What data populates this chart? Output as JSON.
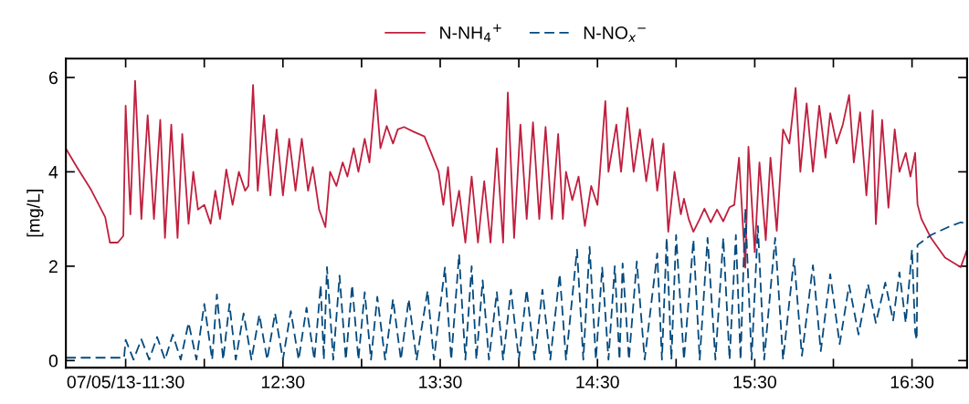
{
  "chart_data": {
    "type": "line",
    "ylabel": "[mg/L]",
    "legend": "top",
    "grid": false,
    "marker": "none",
    "xlim": [
      11.12,
      16.85
    ],
    "ylim": [
      -0.15,
      6.4
    ],
    "yticks": [
      0,
      2,
      4,
      6
    ],
    "xticks": [
      {
        "value": 11.5,
        "label": "07/05/13-11:30"
      },
      {
        "value": 12,
        "label": null
      },
      {
        "value": 12.5,
        "label": "12:30"
      },
      {
        "value": 13,
        "label": null
      },
      {
        "value": 13.5,
        "label": "13:30"
      },
      {
        "value": 14,
        "label": null
      },
      {
        "value": 14.5,
        "label": "14:30"
      },
      {
        "value": 15,
        "label": null
      },
      {
        "value": 15.5,
        "label": "15:30"
      },
      {
        "value": 16,
        "label": null
      },
      {
        "value": 16.5,
        "label": "16:30"
      }
    ],
    "series": [
      {
        "name": "N-NH$_{4}$$^{+}$",
        "color": "#c01f3e",
        "line_style": "solid",
        "x": [
          11.12,
          11.19,
          11.28,
          11.37,
          11.4,
          11.45,
          11.485,
          11.5,
          11.53,
          11.56,
          11.6,
          11.64,
          11.68,
          11.72,
          11.75,
          11.79,
          11.83,
          11.86,
          11.9,
          11.93,
          11.96,
          12.0,
          12.04,
          12.07,
          12.1,
          12.14,
          12.18,
          12.22,
          12.26,
          12.28,
          12.31,
          12.34,
          12.38,
          12.42,
          12.46,
          12.5,
          12.54,
          12.58,
          12.62,
          12.66,
          12.69,
          12.73,
          12.77,
          12.8,
          12.84,
          12.88,
          12.91,
          12.95,
          12.98,
          13.02,
          13.05,
          13.09,
          13.12,
          13.16,
          13.2,
          13.23,
          13.27,
          13.33,
          13.4,
          13.45,
          13.49,
          13.52,
          13.55,
          13.58,
          13.62,
          13.66,
          13.7,
          13.74,
          13.78,
          13.82,
          13.86,
          13.9,
          13.93,
          13.97,
          14.01,
          14.05,
          14.09,
          14.13,
          14.17,
          14.21,
          14.25,
          14.28,
          14.3,
          14.34,
          14.38,
          14.42,
          14.46,
          14.5,
          14.55,
          14.57,
          14.62,
          14.65,
          14.69,
          14.73,
          14.77,
          14.81,
          14.85,
          14.88,
          14.92,
          14.95,
          14.99,
          15.03,
          15.05,
          15.08,
          15.11,
          15.15,
          15.18,
          15.22,
          15.26,
          15.3,
          15.34,
          15.37,
          15.4,
          15.44,
          15.46,
          15.5,
          15.53,
          15.57,
          15.6,
          15.64,
          15.68,
          15.72,
          15.76,
          15.79,
          15.83,
          15.87,
          15.91,
          15.95,
          15.98,
          16.02,
          16.06,
          16.1,
          16.13,
          16.17,
          16.21,
          16.25,
          16.27,
          16.31,
          16.35,
          16.39,
          16.42,
          16.46,
          16.49,
          16.52,
          16.535,
          16.56,
          16.62,
          16.71,
          16.81,
          16.85
        ],
        "values": [
          4.49,
          4.1,
          3.62,
          3.04,
          2.5,
          2.5,
          2.64,
          5.4,
          3.1,
          5.93,
          3.0,
          5.2,
          3.0,
          5.1,
          2.6,
          5.0,
          2.6,
          4.8,
          2.9,
          4.0,
          3.2,
          3.3,
          2.9,
          3.6,
          3.0,
          4.05,
          3.3,
          4.0,
          3.6,
          3.7,
          5.84,
          3.6,
          5.2,
          3.5,
          4.9,
          3.5,
          4.7,
          3.6,
          4.7,
          3.6,
          4.1,
          3.2,
          2.83,
          4.0,
          3.7,
          4.2,
          3.9,
          4.5,
          4.0,
          4.7,
          4.2,
          5.74,
          4.5,
          4.97,
          4.6,
          4.9,
          4.95,
          4.85,
          4.75,
          4.34,
          4.0,
          3.3,
          4.1,
          2.85,
          3.6,
          2.5,
          3.9,
          2.5,
          3.8,
          2.5,
          4.5,
          2.5,
          5.68,
          2.6,
          5.0,
          3.0,
          5.05,
          3.0,
          4.95,
          3.0,
          4.8,
          3.0,
          4.0,
          3.4,
          3.9,
          2.85,
          3.7,
          3.3,
          5.5,
          4.0,
          5.0,
          4.0,
          5.36,
          4.0,
          4.9,
          3.8,
          4.7,
          3.6,
          4.6,
          2.73,
          4.0,
          3.1,
          3.43,
          3.0,
          2.73,
          3.0,
          3.22,
          2.93,
          3.2,
          2.95,
          3.25,
          3.3,
          4.3,
          1.97,
          4.53,
          2.3,
          4.2,
          2.55,
          4.3,
          2.75,
          4.9,
          4.6,
          5.78,
          4.0,
          5.45,
          4.0,
          5.4,
          4.3,
          5.24,
          4.6,
          5.0,
          5.63,
          4.2,
          5.26,
          3.5,
          5.3,
          2.89,
          5.1,
          3.24,
          4.9,
          4.0,
          4.4,
          3.9,
          4.4,
          3.31,
          3.0,
          2.6,
          2.18,
          1.98,
          2.35
        ]
      },
      {
        "name": "N-NO$_{x}$$^{−}$",
        "color": "#034a7e",
        "line_style": "dashed",
        "x": [
          11.12,
          11.49,
          11.5,
          11.55,
          11.6,
          11.65,
          11.7,
          11.75,
          11.8,
          11.85,
          11.9,
          11.95,
          12.0,
          12.05,
          12.08,
          12.12,
          12.16,
          12.2,
          12.25,
          12.3,
          12.35,
          12.4,
          12.45,
          12.5,
          12.55,
          12.6,
          12.65,
          12.7,
          12.74,
          12.76,
          12.78,
          12.82,
          12.86,
          12.9,
          12.94,
          12.98,
          13.02,
          13.06,
          13.1,
          13.15,
          13.2,
          13.25,
          13.3,
          13.35,
          13.42,
          13.46,
          13.53,
          13.57,
          13.62,
          13.66,
          13.7,
          13.73,
          13.77,
          13.81,
          13.86,
          13.9,
          13.95,
          14.0,
          14.05,
          14.1,
          14.15,
          14.2,
          14.26,
          14.3,
          14.37,
          14.41,
          14.45,
          14.49,
          14.53,
          14.57,
          14.61,
          14.64,
          14.66,
          14.7,
          14.75,
          14.8,
          14.88,
          14.91,
          14.94,
          14.97,
          15.0,
          15.05,
          15.11,
          15.15,
          15.2,
          15.25,
          15.3,
          15.34,
          15.38,
          15.41,
          15.44,
          15.48,
          15.52,
          15.56,
          15.63,
          15.68,
          15.75,
          15.8,
          15.87,
          15.92,
          15.98,
          16.04,
          16.1,
          16.16,
          16.22,
          16.27,
          16.33,
          16.38,
          16.42,
          16.46,
          16.5,
          16.52,
          16.53,
          16.535,
          16.62,
          16.73,
          16.81,
          16.85
        ],
        "values": [
          0.06,
          0.06,
          0.44,
          0.02,
          0.45,
          0.02,
          0.5,
          0.02,
          0.55,
          0.02,
          0.8,
          0.02,
          1.2,
          0.02,
          1.4,
          0.02,
          1.2,
          0.02,
          1.0,
          0.02,
          0.97,
          0.02,
          1.0,
          0.02,
          1.05,
          0.02,
          1.12,
          0.02,
          1.6,
          0.02,
          1.98,
          0.02,
          1.8,
          0.02,
          1.6,
          0.02,
          1.45,
          0.02,
          1.35,
          0.02,
          1.3,
          0.02,
          1.3,
          0.02,
          1.48,
          0.02,
          1.97,
          0.02,
          2.25,
          0.02,
          2.0,
          0.02,
          1.7,
          0.02,
          1.45,
          0.02,
          1.5,
          0.02,
          1.5,
          0.02,
          1.5,
          0.02,
          1.83,
          0.02,
          2.35,
          0.02,
          2.41,
          0.02,
          1.97,
          0.02,
          2.0,
          0.02,
          2.06,
          0.02,
          2.1,
          0.02,
          2.27,
          0.02,
          2.6,
          0.02,
          2.66,
          0.02,
          2.56,
          0.02,
          2.6,
          0.02,
          2.6,
          0.02,
          2.66,
          0.02,
          3.22,
          0.02,
          2.85,
          0.02,
          2.6,
          0.02,
          2.16,
          0.1,
          2.02,
          0.2,
          1.83,
          0.35,
          1.6,
          0.55,
          1.62,
          0.8,
          1.65,
          0.85,
          1.87,
          0.8,
          2.35,
          0.6,
          0.44,
          2.45,
          2.66,
          2.83,
          2.93,
          2.9
        ]
      }
    ]
  }
}
